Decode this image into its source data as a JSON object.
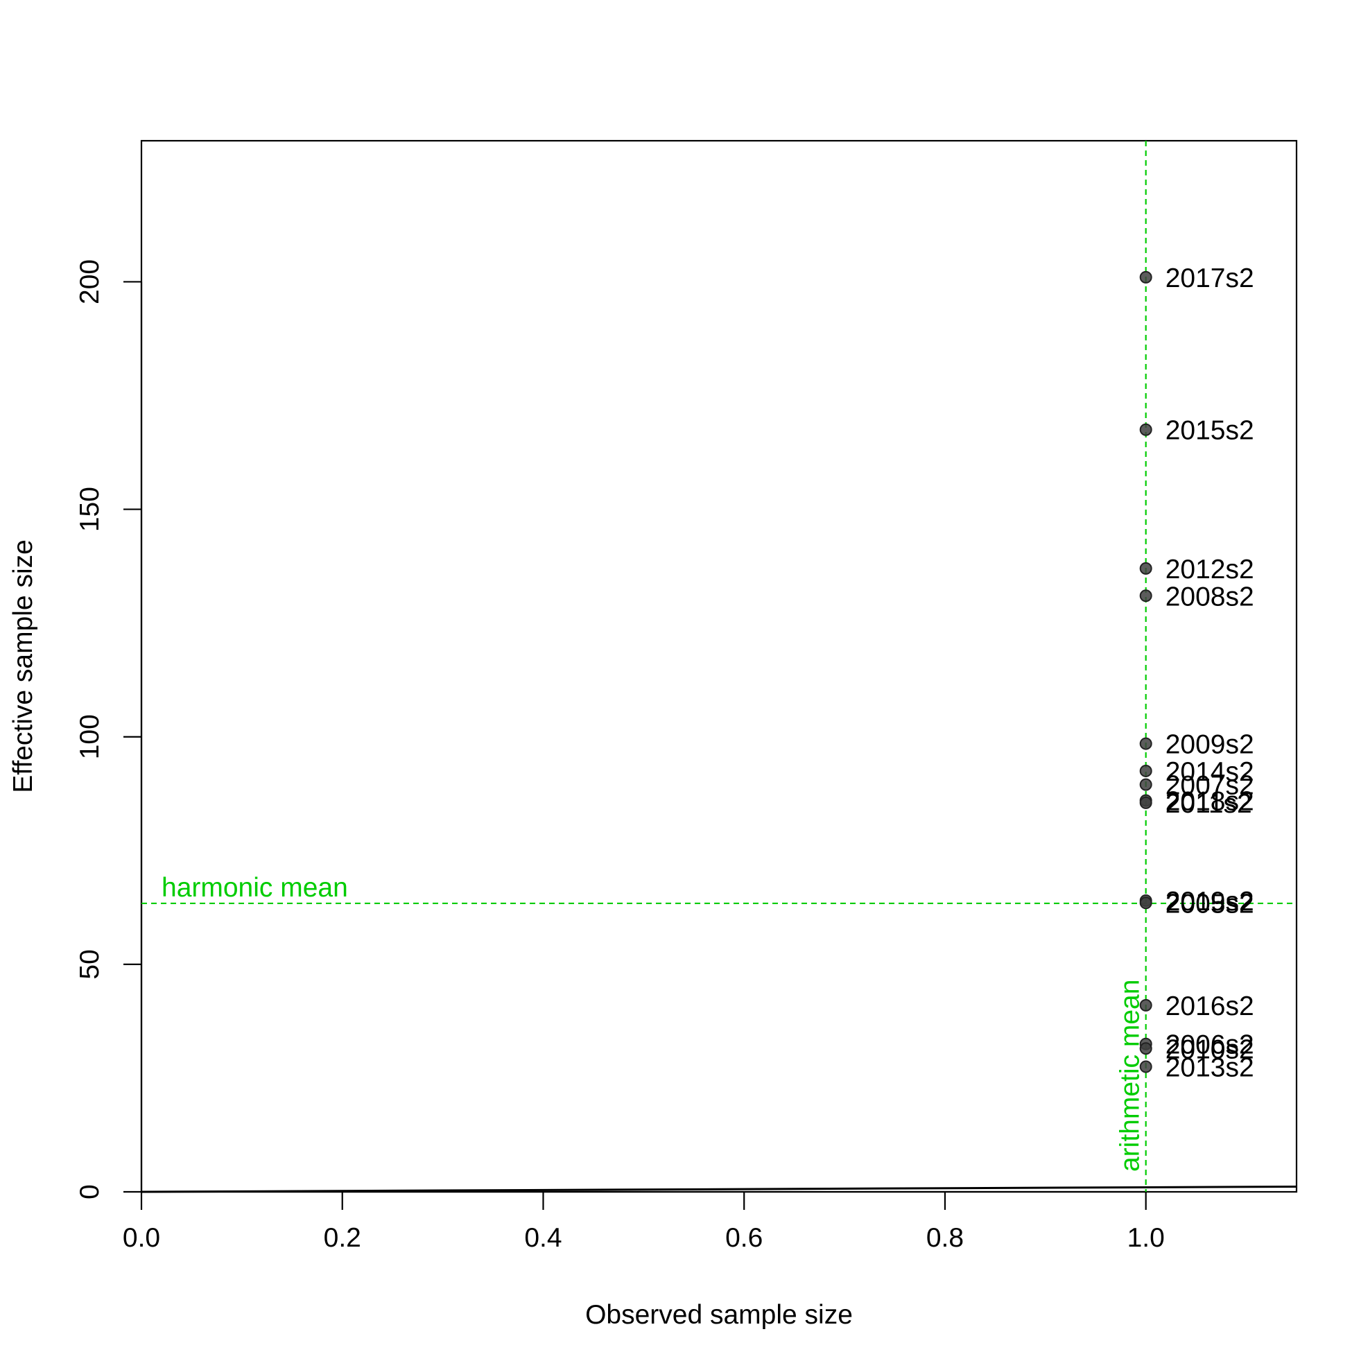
{
  "chart_data": {
    "type": "scatter",
    "title": "",
    "xlabel": "Observed sample size",
    "ylabel": "Effective sample size",
    "xlim": [
      0,
      1.15
    ],
    "ylim": [
      0,
      231
    ],
    "x_ticks": [
      0.0,
      0.2,
      0.4,
      0.6,
      0.8,
      1.0
    ],
    "x_tick_labels": [
      "0.0",
      "0.2",
      "0.4",
      "0.6",
      "0.8",
      "1.0"
    ],
    "y_ticks": [
      0,
      50,
      100,
      150,
      200
    ],
    "y_tick_labels": [
      "0",
      "50",
      "100",
      "150",
      "200"
    ],
    "grid": false,
    "point_color": "#404040",
    "reference_color": "#00cc00",
    "points": [
      {
        "label": "2017s2",
        "x": 1.0,
        "y": 201
      },
      {
        "label": "2015s2",
        "x": 1.0,
        "y": 167.5
      },
      {
        "label": "2012s2",
        "x": 1.0,
        "y": 137
      },
      {
        "label": "2008s2",
        "x": 1.0,
        "y": 131
      },
      {
        "label": "2009s2",
        "x": 1.0,
        "y": 98.5
      },
      {
        "label": "2014s2",
        "x": 1.0,
        "y": 92.5
      },
      {
        "label": "2007s2",
        "x": 1.0,
        "y": 89.5
      },
      {
        "label": "2018s2",
        "x": 1.0,
        "y": 86
      },
      {
        "label": "2011s2",
        "x": 1.0,
        "y": 85.5
      },
      {
        "label": "2019s2",
        "x": 1.0,
        "y": 64
      },
      {
        "label": "2005s2",
        "x": 1.0,
        "y": 63.5
      },
      {
        "label": "2016s2",
        "x": 1.0,
        "y": 41
      },
      {
        "label": "2006s2",
        "x": 1.0,
        "y": 32.5
      },
      {
        "label": "2010s2",
        "x": 1.0,
        "y": 31.5
      },
      {
        "label": "2013s2",
        "x": 1.0,
        "y": 27.5
      }
    ],
    "identity_line": {
      "x": [
        0,
        1.15
      ],
      "y": [
        0,
        1.15
      ]
    },
    "harmonic_mean": {
      "label": "harmonic mean",
      "value": 63.4
    },
    "arithmetic_mean": {
      "label": "arithmetic mean",
      "value": 1.0
    }
  }
}
